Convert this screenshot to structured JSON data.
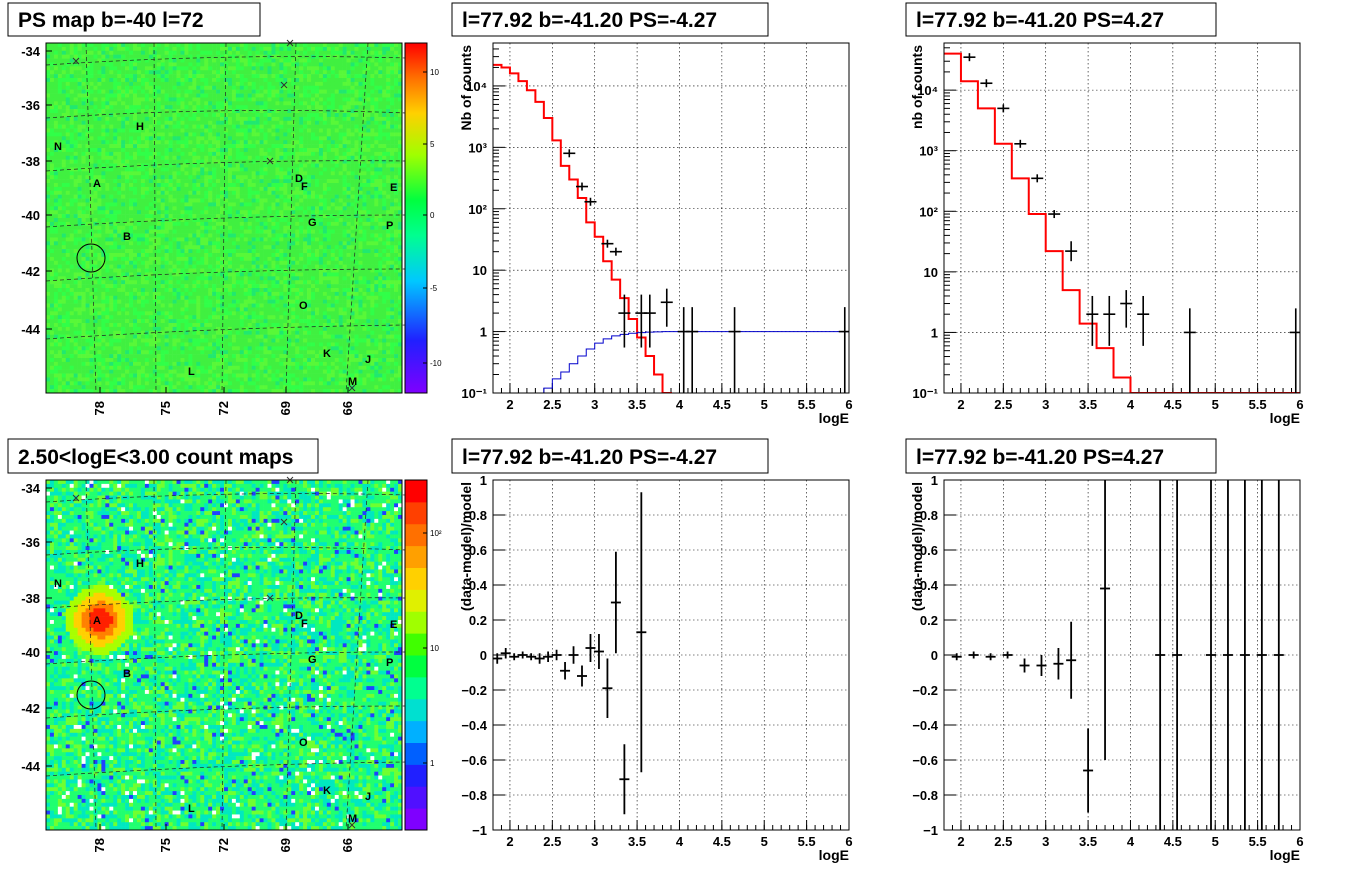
{
  "chart_data": [
    {
      "type": "heatmap",
      "title": "PS map b=-40 l=72",
      "xticks": [
        "78",
        "75",
        "72",
        "69",
        "66"
      ],
      "yticks": [
        "-34",
        "-36",
        "-38",
        "-40",
        "-42",
        "-44"
      ],
      "palette_ticks": [
        "10",
        "5",
        "0",
        "-5",
        "-10"
      ],
      "palette_range": [
        -12,
        12
      ],
      "regions": [
        "N",
        "H",
        "A",
        "B",
        "D",
        "F",
        "E",
        "G",
        "P",
        "O",
        "K",
        "J",
        "L",
        "M"
      ],
      "circle_center": [
        "77.5",
        "-41.2"
      ]
    },
    {
      "type": "line",
      "title": "l=77.92 b=-41.20 PS=-4.27",
      "xlabel": "logE",
      "ylabel": "Nb of counts",
      "xlim": [
        1.8,
        6.0
      ],
      "ylim": [
        0.1,
        50000
      ],
      "log_y": true,
      "xticks": [
        "2",
        "2.5",
        "3",
        "3.5",
        "4",
        "4.5",
        "5",
        "5.5",
        "6"
      ],
      "yticks": [
        "10⁻¹",
        "1",
        "10",
        "10²",
        "10³",
        "10⁴"
      ],
      "series": [
        {
          "color": "#ff0000",
          "steps_x": [
            1.8,
            1.9,
            2.0,
            2.1,
            2.2,
            2.3,
            2.4,
            2.5,
            2.6,
            2.7,
            2.8,
            2.9,
            3.0,
            3.1,
            3.2,
            3.3,
            3.4,
            3.5,
            3.6,
            3.7,
            3.8,
            3.9,
            4.0,
            4.1,
            4.2
          ],
          "steps_y": [
            22000,
            20000,
            16000,
            12000,
            8500,
            5500,
            3000,
            1300,
            500,
            300,
            150,
            60,
            35,
            14,
            7,
            3.5,
            1.6,
            0.8,
            0.4,
            0.2,
            0.1,
            0.05,
            0.02,
            0.01
          ]
        },
        {
          "color": "#0000cc",
          "steps_x": [
            2.3,
            2.4,
            2.5,
            2.6,
            2.7,
            2.8,
            2.9,
            3.0,
            3.1,
            3.2,
            3.3,
            3.4,
            3.5,
            3.6,
            3.7,
            3.8,
            3.9,
            4.0,
            6.0
          ],
          "steps_y": [
            0.08,
            0.12,
            0.17,
            0.22,
            0.3,
            0.4,
            0.52,
            0.65,
            0.76,
            0.85,
            0.9,
            0.94,
            0.96,
            0.98,
            0.99,
            1.0,
            1.0,
            1.0
          ]
        },
        {
          "color": "#000000",
          "type": "errors",
          "points": [
            [
              2.7,
              800,
              0,
              0
            ],
            [
              2.85,
              230,
              0,
              0
            ],
            [
              2.95,
              130,
              0,
              0
            ],
            [
              3.15,
              27,
              0,
              0
            ],
            [
              3.25,
              20,
              0,
              0
            ],
            [
              3.35,
              2,
              0.55,
              4
            ],
            [
              3.55,
              2,
              0.55,
              4
            ],
            [
              3.65,
              2,
              0.55,
              4
            ],
            [
              3.85,
              3,
              1.2,
              5
            ],
            [
              4.05,
              1,
              0.1,
              2.5
            ],
            [
              4.15,
              1,
              0.1,
              2.5
            ],
            [
              4.65,
              1,
              0.1,
              2.5
            ],
            [
              5.95,
              1,
              0.1,
              2.5
            ]
          ]
        }
      ]
    },
    {
      "type": "line",
      "title": "l=77.92 b=-41.20 PS=4.27",
      "xlabel": "logE",
      "ylabel": "nb of counts",
      "xlim": [
        1.8,
        6.0
      ],
      "ylim": [
        0.1,
        60000
      ],
      "log_y": true,
      "xticks": [
        "2",
        "2.5",
        "3",
        "3.5",
        "4",
        "4.5",
        "5",
        "5.5",
        "6"
      ],
      "yticks": [
        "10⁻¹",
        "1",
        "10",
        "10²",
        "10³",
        "10⁴"
      ],
      "series": [
        {
          "color": "#ff0000",
          "steps_x": [
            1.8,
            2.0,
            2.2,
            2.4,
            2.6,
            2.8,
            3.0,
            3.2,
            3.4,
            3.6,
            3.8,
            4.0,
            4.2,
            6.0
          ],
          "steps_y": [
            40000,
            14000,
            5000,
            1300,
            350,
            90,
            22,
            5,
            1.4,
            0.55,
            0.18,
            0.1,
            0.1
          ]
        },
        {
          "color": "#000000",
          "type": "errors",
          "points": [
            [
              2.1,
              35000,
              0,
              0
            ],
            [
              2.3,
              13000,
              0,
              0
            ],
            [
              2.5,
              5000,
              0,
              0
            ],
            [
              2.7,
              1300,
              0,
              0
            ],
            [
              2.9,
              350,
              0,
              0
            ],
            [
              3.1,
              90,
              0,
              0
            ],
            [
              3.3,
              22,
              15,
              32
            ],
            [
              3.55,
              2,
              0.6,
              4
            ],
            [
              3.75,
              2,
              0.6,
              4
            ],
            [
              3.95,
              3,
              1.2,
              5
            ],
            [
              4.15,
              2,
              0.6,
              4
            ],
            [
              4.7,
              1,
              0.1,
              2.5
            ],
            [
              5.95,
              1,
              0.1,
              2.5
            ]
          ]
        }
      ]
    },
    {
      "type": "heatmap",
      "title": "2.50<logE<3.00 count maps",
      "xticks": [
        "78",
        "75",
        "72",
        "69",
        "66"
      ],
      "yticks": [
        "-34",
        "-36",
        "-38",
        "-40",
        "-42",
        "-44"
      ],
      "palette_ticks": [
        "10²",
        "10",
        "1"
      ],
      "regions": [
        "N",
        "H",
        "A",
        "B",
        "D",
        "F",
        "E",
        "G",
        "P",
        "O",
        "K",
        "J",
        "L",
        "M"
      ],
      "hotspot_center": [
        "77.5",
        "-38.6"
      ]
    },
    {
      "type": "scatter",
      "title": "l=77.92 b=-41.20 PS=-4.27",
      "xlabel": "logE",
      "ylabel": "(data-model)/model",
      "xlim": [
        1.8,
        6.0
      ],
      "ylim": [
        -1,
        1
      ],
      "xticks": [
        "2",
        "2.5",
        "3",
        "3.5",
        "4",
        "4.5",
        "5",
        "5.5",
        "6"
      ],
      "yticks": [
        "1",
        "0.8",
        "0.6",
        "0.4",
        "0.2",
        "0",
        "−0.2",
        "−0.4",
        "−0.6",
        "−0.8",
        "−1"
      ],
      "points": [
        [
          1.85,
          -0.02,
          0.03
        ],
        [
          1.95,
          0.01,
          0.03
        ],
        [
          2.05,
          -0.01,
          0.02
        ],
        [
          2.15,
          0.0,
          0.02
        ],
        [
          2.25,
          -0.01,
          0.02
        ],
        [
          2.35,
          -0.02,
          0.03
        ],
        [
          2.45,
          -0.01,
          0.03
        ],
        [
          2.55,
          0.0,
          0.03
        ],
        [
          2.65,
          -0.09,
          0.05
        ],
        [
          2.75,
          0.0,
          0.05
        ],
        [
          2.85,
          -0.12,
          0.06
        ],
        [
          2.95,
          0.04,
          0.08
        ],
        [
          3.05,
          0.02,
          0.1
        ],
        [
          3.15,
          -0.19,
          0.17
        ],
        [
          3.25,
          0.3,
          0.29
        ],
        [
          3.35,
          -0.71,
          0.2
        ],
        [
          3.55,
          0.13,
          0.8
        ]
      ]
    },
    {
      "type": "scatter",
      "title": "l=77.92 b=-41.20 PS=4.27",
      "xlabel": "logE",
      "ylabel": "(data-model)/model",
      "xlim": [
        1.8,
        6.0
      ],
      "ylim": [
        -1,
        1
      ],
      "xticks": [
        "2",
        "2.5",
        "3",
        "3.5",
        "4",
        "4.5",
        "5",
        "5.5",
        "6"
      ],
      "yticks": [
        "1",
        "0.8",
        "0.6",
        "0.4",
        "0.2",
        "0",
        "−0.2",
        "−0.4",
        "−0.6",
        "−0.8",
        "−1"
      ],
      "points": [
        [
          1.95,
          -0.01,
          0.02
        ],
        [
          2.15,
          0.0,
          0.02
        ],
        [
          2.35,
          -0.01,
          0.02
        ],
        [
          2.55,
          0.0,
          0.02
        ],
        [
          2.75,
          -0.06,
          0.04
        ],
        [
          2.95,
          -0.06,
          0.06
        ],
        [
          3.15,
          -0.05,
          0.09
        ],
        [
          3.3,
          -0.03,
          0.22
        ],
        [
          3.5,
          -0.66,
          0.24
        ],
        [
          3.7,
          0.38,
          0.98
        ],
        [
          4.35,
          0,
          1.5
        ],
        [
          4.55,
          0,
          1.5
        ],
        [
          4.95,
          0,
          1.5
        ],
        [
          5.15,
          0,
          1.5
        ],
        [
          5.35,
          0,
          1.5
        ],
        [
          5.55,
          0,
          1.5
        ],
        [
          5.75,
          0,
          1.5
        ]
      ]
    }
  ]
}
